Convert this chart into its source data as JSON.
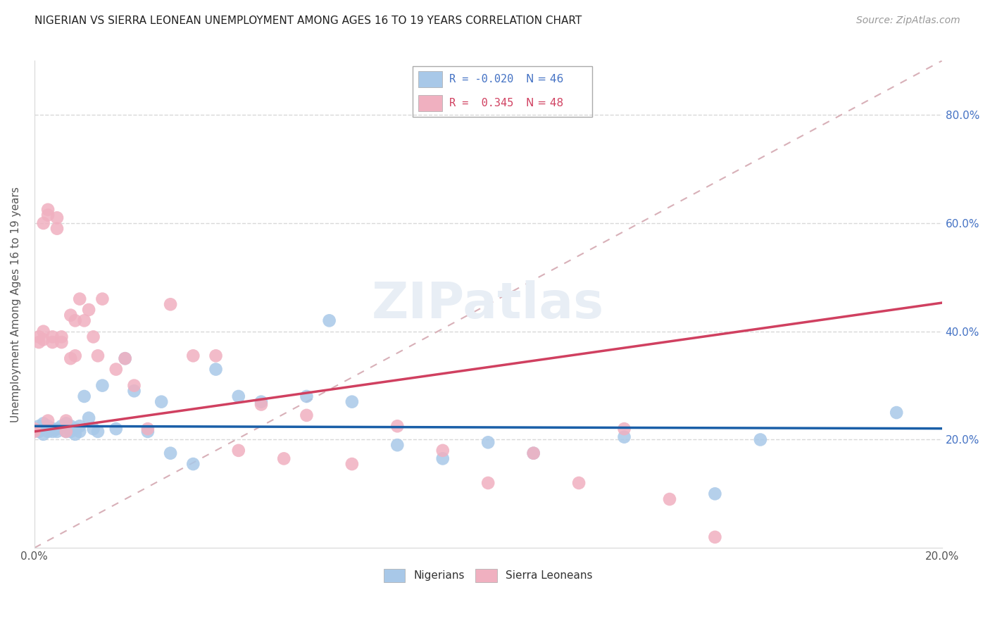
{
  "title": "NIGERIAN VS SIERRA LEONEAN UNEMPLOYMENT AMONG AGES 16 TO 19 YEARS CORRELATION CHART",
  "source": "Source: ZipAtlas.com",
  "ylabel": "Unemployment Among Ages 16 to 19 years",
  "xlim": [
    0.0,
    0.2
  ],
  "ylim": [
    0.0,
    0.9
  ],
  "nigerian_R": -0.02,
  "nigerian_N": 46,
  "sierraleonean_R": 0.345,
  "sierraleonean_N": 48,
  "blue_color": "#a8c8e8",
  "blue_line_color": "#1a5fa8",
  "pink_color": "#f0b0c0",
  "pink_line_color": "#d04060",
  "diagonal_color": "#d8b0b8",
  "grid_color": "#d8d8d8",
  "right_axis_color": "#4472c4",
  "nigerian_x": [
    0.0,
    0.001,
    0.001,
    0.002,
    0.002,
    0.003,
    0.003,
    0.004,
    0.004,
    0.005,
    0.005,
    0.006,
    0.007,
    0.007,
    0.008,
    0.008,
    0.009,
    0.009,
    0.01,
    0.01,
    0.011,
    0.012,
    0.013,
    0.014,
    0.015,
    0.018,
    0.02,
    0.022,
    0.025,
    0.028,
    0.03,
    0.035,
    0.04,
    0.045,
    0.05,
    0.06,
    0.065,
    0.07,
    0.08,
    0.09,
    0.1,
    0.11,
    0.13,
    0.15,
    0.16,
    0.19
  ],
  "nigerian_y": [
    0.22,
    0.215,
    0.225,
    0.21,
    0.23,
    0.215,
    0.225,
    0.22,
    0.215,
    0.215,
    0.22,
    0.225,
    0.215,
    0.23,
    0.215,
    0.225,
    0.22,
    0.21,
    0.215,
    0.225,
    0.28,
    0.24,
    0.22,
    0.215,
    0.3,
    0.22,
    0.35,
    0.29,
    0.215,
    0.27,
    0.175,
    0.155,
    0.33,
    0.28,
    0.27,
    0.28,
    0.42,
    0.27,
    0.19,
    0.165,
    0.195,
    0.175,
    0.205,
    0.1,
    0.2,
    0.25
  ],
  "sierraleonean_x": [
    0.0,
    0.0,
    0.001,
    0.001,
    0.002,
    0.002,
    0.002,
    0.003,
    0.003,
    0.003,
    0.004,
    0.004,
    0.005,
    0.005,
    0.006,
    0.006,
    0.007,
    0.007,
    0.008,
    0.008,
    0.009,
    0.009,
    0.01,
    0.011,
    0.012,
    0.013,
    0.014,
    0.015,
    0.018,
    0.02,
    0.022,
    0.025,
    0.03,
    0.035,
    0.04,
    0.045,
    0.05,
    0.055,
    0.06,
    0.07,
    0.08,
    0.09,
    0.1,
    0.11,
    0.12,
    0.13,
    0.14,
    0.15
  ],
  "sierraleonean_y": [
    0.22,
    0.215,
    0.38,
    0.39,
    0.4,
    0.385,
    0.6,
    0.615,
    0.625,
    0.235,
    0.39,
    0.38,
    0.59,
    0.61,
    0.39,
    0.38,
    0.235,
    0.215,
    0.43,
    0.35,
    0.42,
    0.355,
    0.46,
    0.42,
    0.44,
    0.39,
    0.355,
    0.46,
    0.33,
    0.35,
    0.3,
    0.22,
    0.45,
    0.355,
    0.355,
    0.18,
    0.265,
    0.165,
    0.245,
    0.155,
    0.225,
    0.18,
    0.12,
    0.175,
    0.12,
    0.22,
    0.09,
    0.02
  ]
}
